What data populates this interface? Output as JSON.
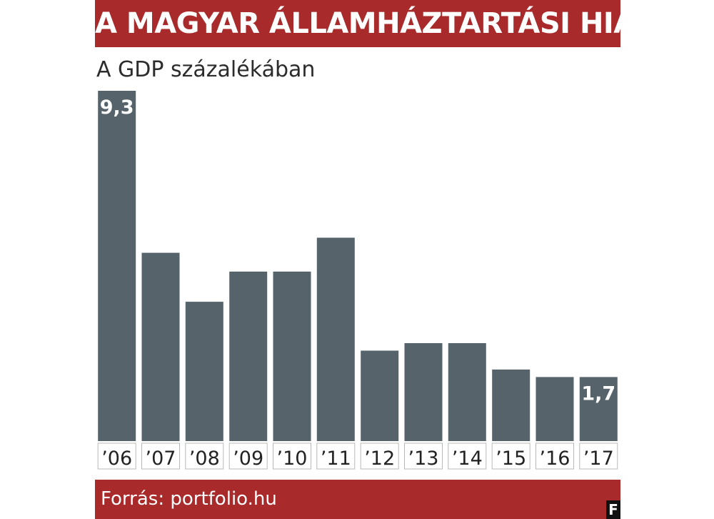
{
  "header": {
    "title": "A MAGYAR ÁLLAMHÁZTARTÁSI HIÁNY",
    "subtitle": "A GDP százalékában"
  },
  "footer": {
    "source": "Forrás: portfolio.hu",
    "logo": "F"
  },
  "colors": {
    "accent": "#a82a2a",
    "bar": "#56636b",
    "label_text": "#ffffff",
    "tick_text": "#222222",
    "tick_bg": "#ffffff",
    "tick_border": "#b8b8b8"
  },
  "chart_data": {
    "type": "bar",
    "title": "A MAGYAR ÁLLAMHÁZTARTÁSI HIÁNY",
    "subtitle": "A GDP százalékában",
    "xlabel": "",
    "ylabel": "",
    "categories": [
      "’06",
      "’07",
      "’08",
      "’09",
      "’10",
      "’11",
      "’12",
      "’13",
      "’14",
      "’15",
      "’16",
      "’17"
    ],
    "values": [
      9.3,
      5.0,
      3.7,
      4.5,
      4.5,
      5.4,
      2.4,
      2.6,
      2.6,
      1.9,
      1.7,
      1.7
    ],
    "data_labels": [
      "9,3",
      "",
      "",
      "",
      "",
      "",
      "",
      "",
      "",
      "",
      "",
      "1,7"
    ],
    "ylim": [
      0,
      9.3
    ],
    "grid": false,
    "legend": "none"
  }
}
